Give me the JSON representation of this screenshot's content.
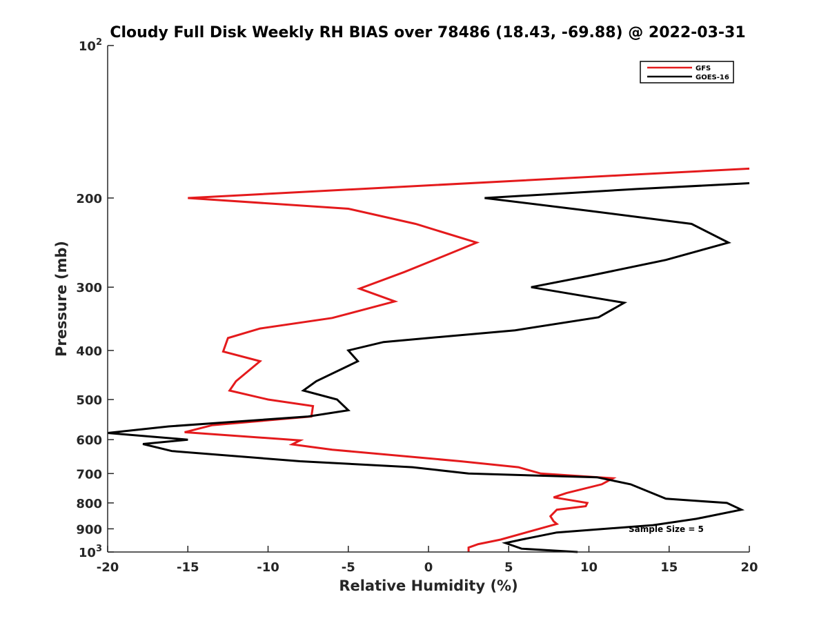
{
  "chart_data": {
    "type": "line",
    "title": "Cloudy Full Disk Weekly RH BIAS over 78486 (18.43, -69.88) @ 2022-03-31",
    "xlabel": "Relative Humidity (%)",
    "ylabel": "Pressure (mb)",
    "xlim": [
      -20,
      20
    ],
    "ylim": [
      100,
      1000
    ],
    "y_scale": "log",
    "y_reversed": true,
    "grid": false,
    "legend_position": "top-right",
    "x_ticks": [
      -20,
      -15,
      -10,
      -5,
      0,
      5,
      10,
      15,
      20
    ],
    "x_tick_labels": [
      "-20",
      "-15",
      "-10",
      "-5",
      "0",
      "5",
      "10",
      "15",
      "20"
    ],
    "y_ticks": [
      100,
      200,
      300,
      400,
      500,
      600,
      700,
      800,
      900,
      1000
    ],
    "y_tick_labels": [
      {
        "base": "10",
        "exp": "2"
      },
      {
        "base": "200"
      },
      {
        "base": "300"
      },
      {
        "base": "400"
      },
      {
        "base": "500"
      },
      {
        "base": "600"
      },
      {
        "base": "700"
      },
      {
        "base": "800"
      },
      {
        "base": "900"
      },
      {
        "base": "10",
        "exp": "3"
      }
    ],
    "annotation": "Sample Size = 5",
    "series": [
      {
        "name": "GFS",
        "color": "#e41a1c",
        "points": [
          [
            20.0,
            175
          ],
          [
            12.5,
            180
          ],
          [
            -15.0,
            200
          ],
          [
            -5.0,
            210
          ],
          [
            -0.8,
            225
          ],
          [
            3.0,
            245
          ],
          [
            1.0,
            260
          ],
          [
            -1.5,
            280
          ],
          [
            -4.3,
            302
          ],
          [
            -2.1,
            320
          ],
          [
            -6.0,
            345
          ],
          [
            -10.5,
            362
          ],
          [
            -12.5,
            378
          ],
          [
            -12.8,
            402
          ],
          [
            -10.5,
            420
          ],
          [
            -12.0,
            460
          ],
          [
            -12.4,
            480
          ],
          [
            -10.0,
            500
          ],
          [
            -7.2,
            515
          ],
          [
            -7.3,
            540
          ],
          [
            -13.5,
            562
          ],
          [
            -15.2,
            580
          ],
          [
            -8.0,
            602
          ],
          [
            -8.5,
            613
          ],
          [
            -6.0,
            628
          ],
          [
            2.0,
            662
          ],
          [
            5.6,
            680
          ],
          [
            7.0,
            700
          ],
          [
            11.5,
            715
          ],
          [
            10.8,
            735
          ],
          [
            8.6,
            765
          ],
          [
            7.8,
            780
          ],
          [
            9.9,
            800
          ],
          [
            9.8,
            812
          ],
          [
            8.0,
            825
          ],
          [
            7.6,
            850
          ],
          [
            7.8,
            870
          ],
          [
            8.0,
            880
          ],
          [
            4.5,
            945
          ],
          [
            3.1,
            965
          ],
          [
            2.5,
            980
          ],
          [
            2.5,
            1000
          ]
        ]
      },
      {
        "name": "GOES-16",
        "color": "#000000",
        "points": [
          [
            20.0,
            187
          ],
          [
            13.0,
            192
          ],
          [
            3.5,
            200
          ],
          [
            10.0,
            212
          ],
          [
            16.4,
            225
          ],
          [
            18.7,
            245
          ],
          [
            14.8,
            265
          ],
          [
            10.0,
            285
          ],
          [
            6.4,
            300
          ],
          [
            12.2,
            322
          ],
          [
            10.6,
            344
          ],
          [
            5.4,
            365
          ],
          [
            -2.8,
            385
          ],
          [
            -5.0,
            400
          ],
          [
            -4.4,
            420
          ],
          [
            -7.0,
            460
          ],
          [
            -7.8,
            480
          ],
          [
            -5.7,
            500
          ],
          [
            -5.0,
            525
          ],
          [
            -7.5,
            540
          ],
          [
            -16.2,
            565
          ],
          [
            -20.0,
            582
          ],
          [
            -15.0,
            600
          ],
          [
            -17.8,
            612
          ],
          [
            -16.0,
            632
          ],
          [
            -8.0,
            662
          ],
          [
            -1.0,
            680
          ],
          [
            2.5,
            700
          ],
          [
            10.5,
            712
          ],
          [
            12.6,
            735
          ],
          [
            14.8,
            785
          ],
          [
            18.6,
            800
          ],
          [
            19.5,
            825
          ],
          [
            16.7,
            860
          ],
          [
            14.0,
            885
          ],
          [
            8.0,
            915
          ],
          [
            5.8,
            945
          ],
          [
            4.8,
            960
          ],
          [
            5.8,
            985
          ],
          [
            9.3,
            1000
          ]
        ]
      }
    ]
  }
}
